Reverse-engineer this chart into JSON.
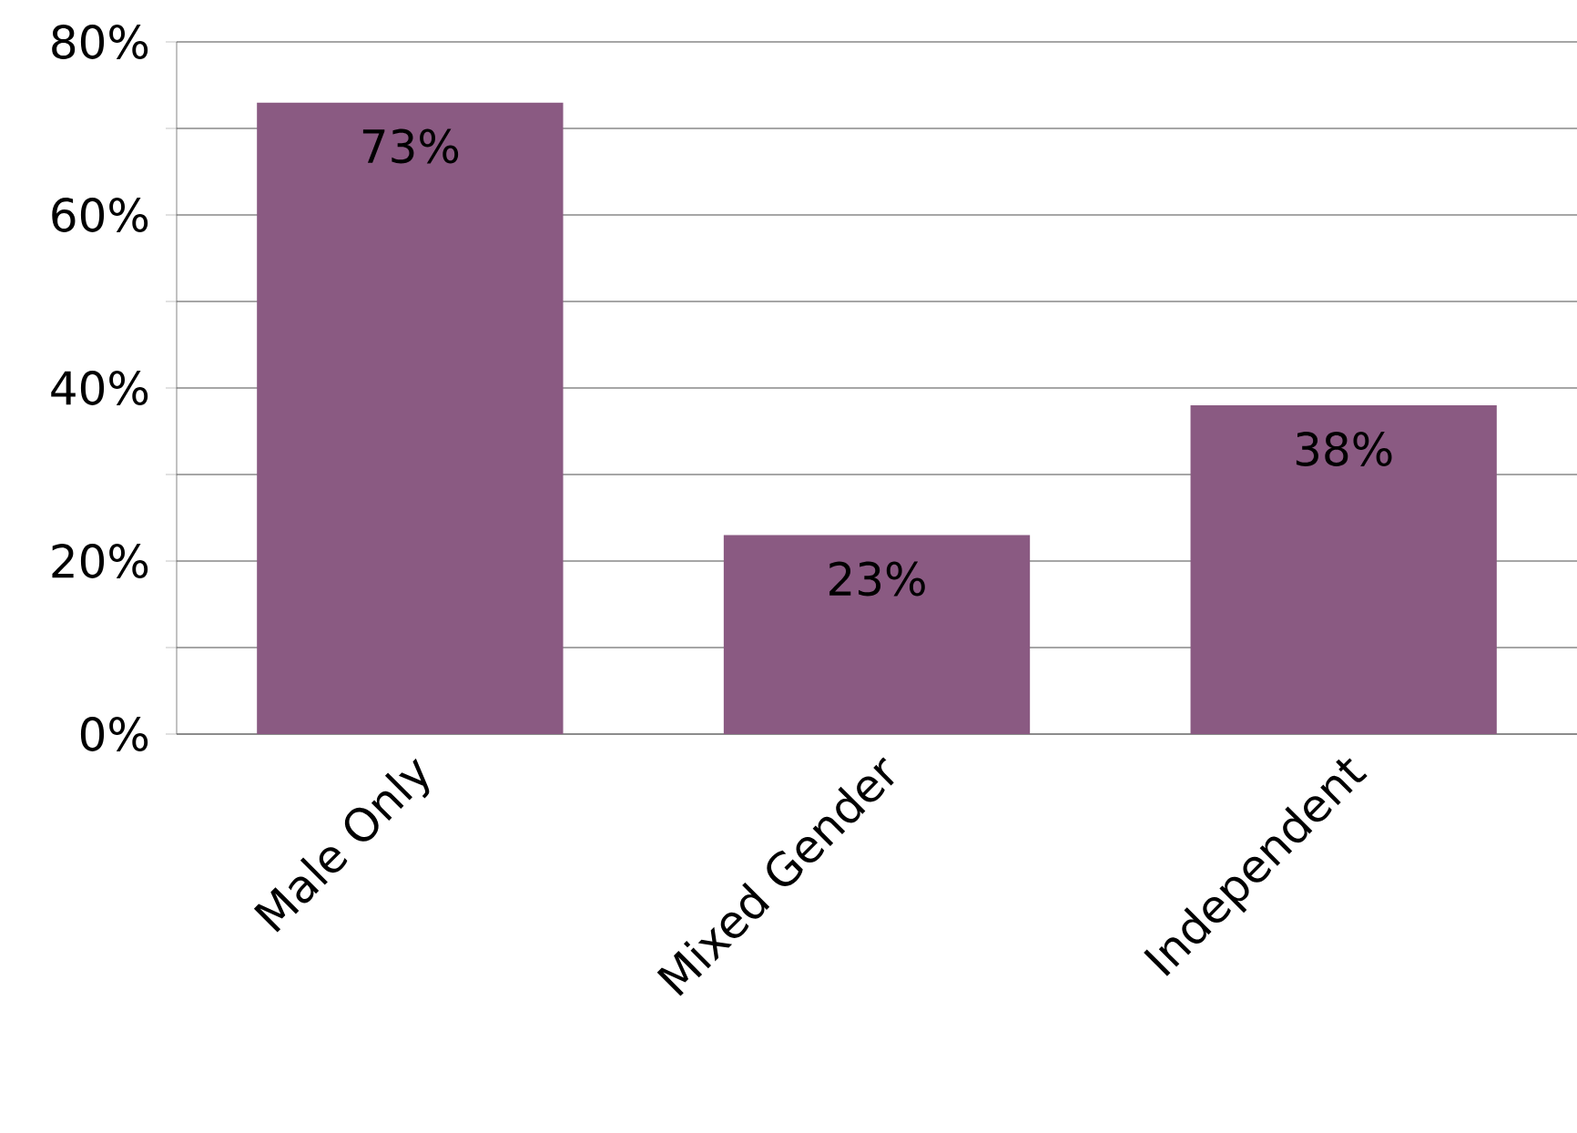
{
  "chart_data": {
    "type": "bar",
    "categories": [
      "Male Only",
      "Mixed Gender",
      "Independent"
    ],
    "values": [
      73,
      23,
      38
    ],
    "value_labels": [
      "73%",
      "23%",
      "38%"
    ],
    "color": "#8a5a82",
    "ylim": [
      0,
      80
    ],
    "yticks": [
      {
        "value": 0,
        "label": "0%"
      },
      {
        "value": 10,
        "label": null
      },
      {
        "value": 20,
        "label": "20%"
      },
      {
        "value": 30,
        "label": null
      },
      {
        "value": 40,
        "label": "40%"
      },
      {
        "value": 50,
        "label": null
      },
      {
        "value": 60,
        "label": "60%"
      },
      {
        "value": 70,
        "label": null
      },
      {
        "value": 80,
        "label": "80%"
      }
    ],
    "grid": "y"
  }
}
